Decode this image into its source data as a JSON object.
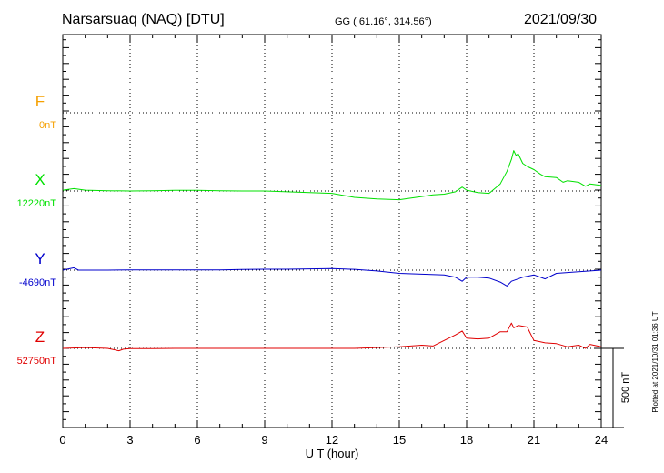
{
  "header": {
    "station": "Narsarsuaq (NAQ)  [DTU]",
    "coords": "GG ( 61.16°, 314.56°)",
    "date": "2021/09/30"
  },
  "footer_note": "Plotted at 2021/10/31 01:36 UT",
  "scale_label": "500 nT",
  "chart_data": {
    "type": "line",
    "xlabel": "U T (hour)",
    "xlim": [
      0,
      24
    ],
    "x_ticks": [
      "0",
      "3",
      "6",
      "9",
      "12",
      "15",
      "18",
      "21",
      "24"
    ],
    "scale_bar_nT": 500,
    "grid": "dotted",
    "series": [
      {
        "name": "F",
        "color": "#f5a000",
        "baseline_label": "0nT",
        "baseline_nT": 0,
        "x": [],
        "y": []
      },
      {
        "name": "X",
        "color": "#00e000",
        "baseline_label": "12220nT",
        "baseline_nT": 12220,
        "x": [
          0,
          0.5,
          1,
          2,
          3,
          4,
          5,
          6,
          7,
          8,
          9,
          10,
          11,
          12,
          13,
          14,
          15,
          16,
          16.5,
          17,
          17.5,
          17.8,
          18,
          18.5,
          19,
          19.5,
          19.8,
          20,
          20.1,
          20.2,
          20.3,
          20.5,
          20.7,
          21,
          21.3,
          21.5,
          22,
          22.3,
          22.5,
          23,
          23.3,
          23.5,
          24
        ],
        "y": [
          12225,
          12235,
          12225,
          12222,
          12220,
          12222,
          12224,
          12224,
          12222,
          12220,
          12220,
          12215,
          12210,
          12205,
          12180,
          12170,
          12165,
          12185,
          12195,
          12200,
          12215,
          12245,
          12225,
          12210,
          12205,
          12265,
          12345,
          12420,
          12475,
          12445,
          12455,
          12395,
          12375,
          12355,
          12325,
          12310,
          12305,
          12275,
          12285,
          12275,
          12250,
          12265,
          12255
        ]
      },
      {
        "name": "Y",
        "color": "#0000cc",
        "baseline_label": "-4690nT",
        "baseline_nT": -4690,
        "x": [
          0,
          0.5,
          0.7,
          1,
          2,
          3,
          4,
          5,
          6,
          7,
          8,
          9,
          10,
          11,
          12,
          13,
          14,
          15,
          16,
          17,
          17.5,
          17.8,
          18,
          18.5,
          19,
          19.5,
          19.8,
          20,
          20.5,
          21,
          21.5,
          22,
          22.5,
          23,
          23.5,
          24
        ],
        "y": [
          -4690,
          -4675,
          -4690,
          -4690,
          -4690,
          -4688,
          -4688,
          -4688,
          -4688,
          -4688,
          -4686,
          -4684,
          -4684,
          -4682,
          -4680,
          -4685,
          -4695,
          -4710,
          -4715,
          -4720,
          -4735,
          -4760,
          -4735,
          -4735,
          -4740,
          -4765,
          -4790,
          -4760,
          -4735,
          -4720,
          -4745,
          -4710,
          -4705,
          -4700,
          -4695,
          -4690
        ]
      },
      {
        "name": "Z",
        "color": "#e00000",
        "baseline_label": "52750nT",
        "baseline_nT": 52750,
        "x": [
          0,
          1,
          2,
          2.5,
          2.7,
          3,
          4,
          5,
          6,
          7,
          8,
          9,
          10,
          11,
          12,
          13,
          14,
          15,
          16,
          16.5,
          17,
          17.5,
          17.8,
          18,
          18.5,
          19,
          19.5,
          19.8,
          20,
          20.1,
          20.3,
          20.5,
          20.7,
          21,
          21.5,
          22,
          22.5,
          23,
          23.3,
          23.5,
          24
        ],
        "y": [
          52750,
          52755,
          52750,
          52735,
          52745,
          52748,
          52748,
          52750,
          52750,
          52750,
          52750,
          52750,
          52750,
          52750,
          52750,
          52750,
          52755,
          52760,
          52770,
          52765,
          52800,
          52835,
          52860,
          52815,
          52810,
          52815,
          52855,
          52855,
          52910,
          52880,
          52895,
          52890,
          52885,
          52800,
          52785,
          52780,
          52760,
          52770,
          52750,
          52775,
          52760
        ]
      }
    ]
  }
}
